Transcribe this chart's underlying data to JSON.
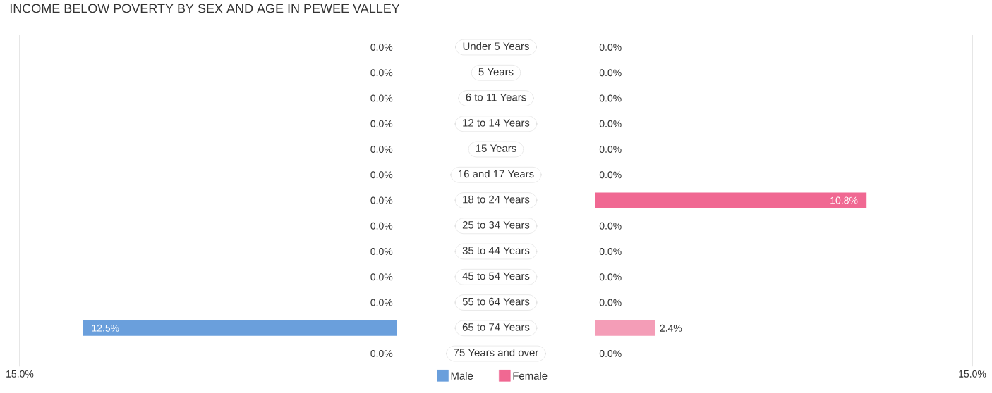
{
  "chart_data": [
    {
      "type": "bar",
      "orientation": "horizontal",
      "title": "INCOME BELOW POVERTY BY SEX AND AGE IN PEWEE VALLEY",
      "categories": [
        "Under 5 Years",
        "5 Years",
        "6 to 11 Years",
        "12 to 14 Years",
        "15 Years",
        "16 and 17 Years",
        "18 to 24 Years",
        "25 to 34 Years",
        "35 to 44 Years",
        "45 to 54 Years",
        "55 to 64 Years",
        "65 to 74 Years",
        "75 Years and over"
      ],
      "series": [
        {
          "name": "Male",
          "color": "#6a9fdc",
          "colors": [
            "#abc8ec",
            "#abc8ec",
            "#abc8ec",
            "#abc8ec",
            "#abc8ec",
            "#abc8ec",
            "#abc8ec",
            "#abc8ec",
            "#abc8ec",
            "#abc8ec",
            "#abc8ec",
            "#6a9fdc",
            "#abc8ec"
          ],
          "values": [
            0,
            0,
            0,
            0,
            0,
            0,
            0,
            0,
            0,
            0,
            0,
            12.5,
            0
          ],
          "value_labels": [
            "0.0%",
            "0.0%",
            "0.0%",
            "0.0%",
            "0.0%",
            "0.0%",
            "0.0%",
            "0.0%",
            "0.0%",
            "0.0%",
            "0.0%",
            "12.5%",
            "0.0%"
          ]
        }
      ],
      "xlim": [
        15,
        0
      ],
      "xticks": [
        {
          "value": 15,
          "label": "15.0%"
        }
      ],
      "legend": "bottom right"
    },
    {
      "type": "bar",
      "orientation": "horizontal",
      "categories": [
        null,
        null,
        null,
        null,
        null,
        null,
        null,
        null,
        null,
        null,
        null,
        null,
        null
      ],
      "series": [
        {
          "name": "Female",
          "color": "#f06892",
          "colors": [
            "#f7a9c1",
            "#f7a9c1",
            "#f7a9c1",
            "#f7a9c1",
            "#f7a9c1",
            "#f7a9c1",
            "#f06892",
            "#f7a9c1",
            "#f7a9c1",
            "#f7a9c1",
            "#f7a9c1",
            "#f49db7",
            "#f7a9c1"
          ],
          "values": [
            0,
            0,
            0,
            0,
            0,
            0,
            10.8,
            0,
            0,
            0,
            0,
            2.4,
            0
          ],
          "value_labels": [
            "0.0%",
            "0.0%",
            "0.0%",
            "0.0%",
            "0.0%",
            "0.0%",
            "10.8%",
            "0.0%",
            "0.0%",
            "0.0%",
            "0.0%",
            "2.4%",
            "0.0%"
          ]
        }
      ],
      "xlim": [
        0,
        15
      ],
      "xticks": [
        {
          "value": 15,
          "label": "15.0%"
        }
      ],
      "legend": "bottom left",
      "tick_labels": "x"
    }
  ]
}
